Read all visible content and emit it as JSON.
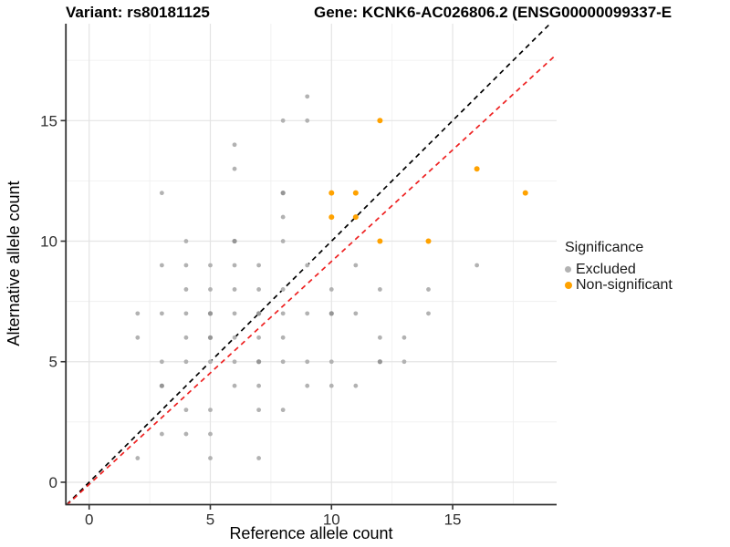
{
  "titles": {
    "variant": "Variant: rs80181125",
    "gene": "Gene: KCNK6-AC026806.2 (ENSG00000099337-E"
  },
  "chart_data": {
    "type": "scatter",
    "xlabel": "Reference allele count",
    "ylabel": "Alternative allele count",
    "xlim": [
      -0.93,
      19.29
    ],
    "ylim": [
      -0.89,
      19.02
    ],
    "x_ticks": [
      0,
      5,
      10,
      15
    ],
    "y_ticks": [
      0,
      5,
      10,
      15
    ],
    "x_minor_grid": [
      2.5,
      7.5,
      12.5,
      17.5
    ],
    "y_minor_grid": [
      2.5,
      7.5,
      12.5,
      17.5
    ],
    "grid": "on",
    "colors": {
      "grid_major": "#e4e4e4",
      "grid_minor": "#f0f0f0",
      "axis_line": "#333333",
      "tick_label": "#303030"
    },
    "lines": [
      {
        "name": "identity-line",
        "slope": 1.0,
        "intercept": 0.0,
        "color": "#000000",
        "style": "dashed"
      },
      {
        "name": "fit-line",
        "slope": 0.925,
        "intercept": -0.09,
        "color": "#ee2020",
        "style": "dashed"
      }
    ],
    "series": [
      {
        "name": "Excluded",
        "color": "#b2b2b2",
        "color_emphasis": "#969696",
        "points": [
          [
            2,
            1
          ],
          [
            5,
            1
          ],
          [
            7,
            1
          ],
          [
            3,
            2
          ],
          [
            4,
            2
          ],
          [
            5,
            2
          ],
          [
            4,
            3
          ],
          [
            5,
            3
          ],
          [
            7,
            3
          ],
          [
            8,
            3
          ],
          [
            6,
            4
          ],
          [
            7,
            4
          ],
          [
            9,
            4
          ],
          [
            10,
            4
          ],
          [
            11,
            4
          ],
          [
            3,
            5
          ],
          [
            4,
            5
          ],
          [
            5,
            5
          ],
          [
            6,
            5
          ],
          [
            8,
            5
          ],
          [
            9,
            5
          ],
          [
            10,
            5
          ],
          [
            13,
            5
          ],
          [
            2,
            6
          ],
          [
            4,
            6
          ],
          [
            6,
            6
          ],
          [
            7,
            6
          ],
          [
            8,
            6
          ],
          [
            12,
            6
          ],
          [
            13,
            6
          ],
          [
            2,
            7
          ],
          [
            3,
            7
          ],
          [
            4,
            7
          ],
          [
            6,
            7
          ],
          [
            8,
            7
          ],
          [
            9,
            7
          ],
          [
            11,
            7
          ],
          [
            14,
            7
          ],
          [
            4,
            8
          ],
          [
            5,
            8
          ],
          [
            6,
            8
          ],
          [
            7,
            8
          ],
          [
            8,
            8
          ],
          [
            10,
            8
          ],
          [
            12,
            8
          ],
          [
            14,
            8
          ],
          [
            3,
            9
          ],
          [
            4,
            9
          ],
          [
            5,
            9
          ],
          [
            6,
            9
          ],
          [
            7,
            9
          ],
          [
            9,
            9
          ],
          [
            11,
            9
          ],
          [
            16,
            9
          ],
          [
            4,
            10
          ],
          [
            8,
            10
          ],
          [
            8,
            11
          ],
          [
            3,
            12
          ],
          [
            6,
            13
          ],
          [
            6,
            14
          ],
          [
            8,
            15
          ],
          [
            9,
            15
          ],
          [
            9,
            16
          ]
        ],
        "points_emphasis": [
          [
            3,
            4
          ],
          [
            7,
            5
          ],
          [
            12,
            5
          ],
          [
            5,
            6
          ],
          [
            5,
            7
          ],
          [
            7,
            7
          ],
          [
            10,
            7
          ],
          [
            6,
            10
          ],
          [
            8,
            12
          ]
        ]
      },
      {
        "name": "Non-significant",
        "color": "#ffa200",
        "points": [
          [
            12,
            10
          ],
          [
            14,
            10
          ],
          [
            10,
            11
          ],
          [
            11,
            11
          ],
          [
            10,
            12
          ],
          [
            11,
            12
          ],
          [
            18,
            12
          ],
          [
            16,
            13
          ],
          [
            12,
            15
          ]
        ]
      }
    ],
    "legend": {
      "position": "right",
      "title": "Significance",
      "entries": [
        {
          "label": "Excluded",
          "color": "#b2b2b2"
        },
        {
          "label": "Non-significant",
          "color": "#ffa200"
        }
      ]
    }
  }
}
